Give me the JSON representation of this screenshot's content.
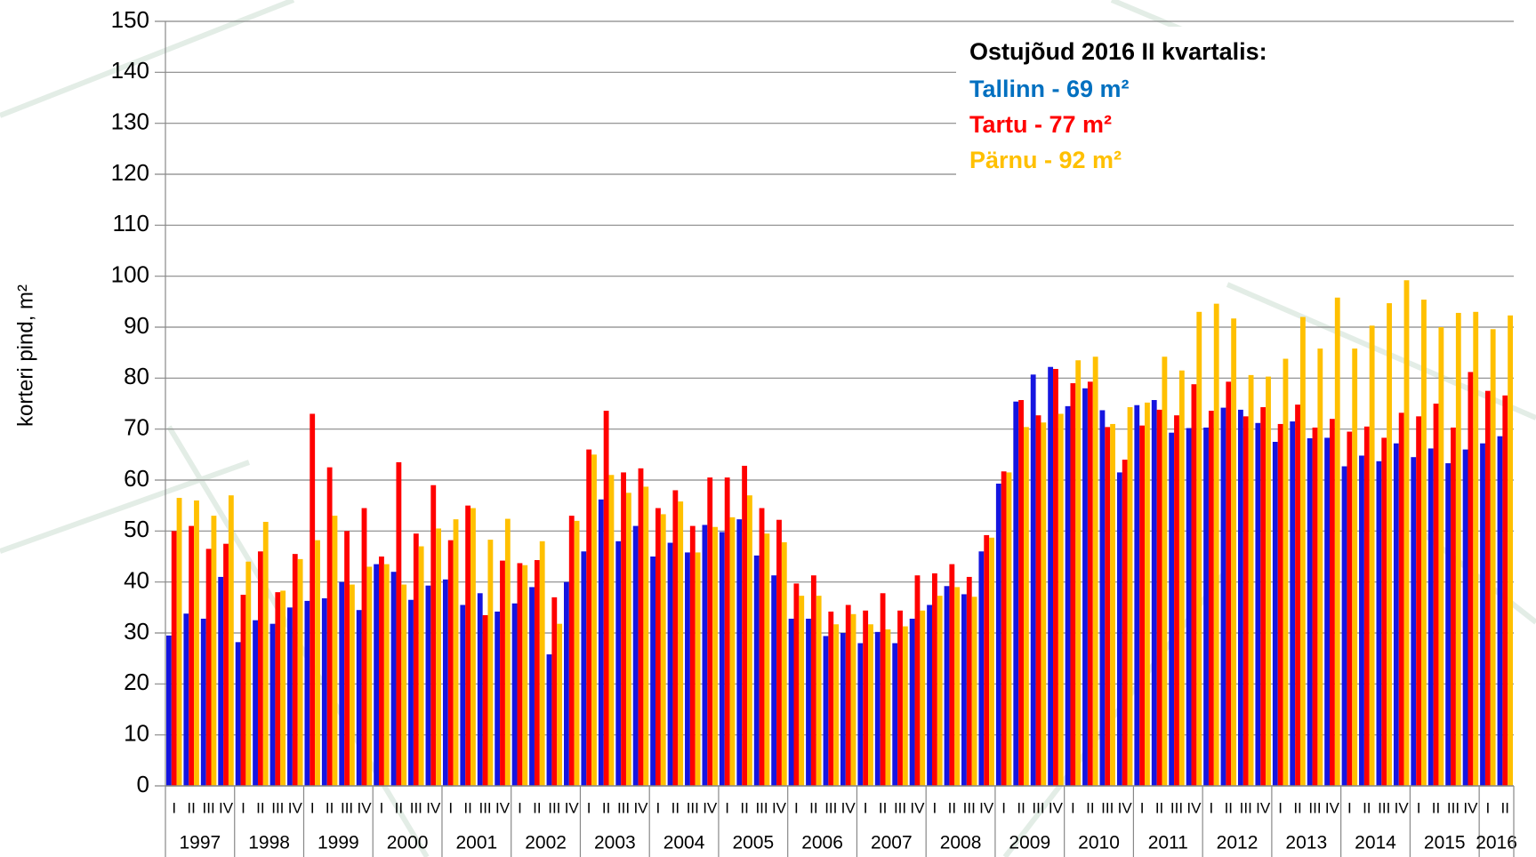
{
  "chart_data": {
    "type": "bar",
    "y_label": "korteri pind, m²",
    "legend_title": "Ostujõud 2016 II kvartalis:",
    "categories": [
      "I",
      "II",
      "III",
      "IV",
      "I",
      "II",
      "III",
      "IV",
      "I",
      "II",
      "III",
      "IV",
      "I",
      "II",
      "III",
      "IV",
      "I",
      "II",
      "III",
      "IV",
      "I",
      "II",
      "III",
      "IV",
      "I",
      "II",
      "III",
      "IV",
      "I",
      "II",
      "III",
      "IV",
      "I",
      "II",
      "III",
      "IV",
      "I",
      "II",
      "III",
      "IV",
      "I",
      "II",
      "III",
      "IV",
      "I",
      "II",
      "III",
      "IV",
      "I",
      "II",
      "III",
      "IV",
      "I",
      "II",
      "III",
      "IV",
      "I",
      "II",
      "III",
      "IV",
      "I",
      "II",
      "III",
      "IV",
      "I",
      "II",
      "III",
      "IV",
      "I",
      "II",
      "III",
      "IV",
      "I",
      "II",
      "III",
      "IV",
      "I",
      "II"
    ],
    "years": [
      "1997",
      "1998",
      "1999",
      "2000",
      "2001",
      "2002",
      "2003",
      "2004",
      "2005",
      "2006",
      "2007",
      "2008",
      "2009",
      "2010",
      "2011",
      "2012",
      "2013",
      "2014",
      "2015",
      "2016"
    ],
    "series": [
      {
        "name": "Tallinn - 69 m²",
        "color": "#1515e0",
        "label_color": "#0070c0",
        "values": [
          29.5,
          33.8,
          32.8,
          41,
          28.2,
          32.5,
          31.8,
          35,
          36.3,
          36.8,
          40,
          34.5,
          43.5,
          42,
          36.5,
          39.3,
          40.5,
          35.5,
          37.8,
          34.2,
          35.8,
          39,
          25.8,
          40,
          46,
          56.2,
          48,
          51,
          45,
          47.7,
          45.8,
          51.2,
          49.8,
          52.3,
          45.2,
          41.3,
          32.8,
          32.8,
          29.4,
          30,
          28,
          30.2,
          28,
          32.8,
          35.5,
          39.2,
          37.6,
          46,
          59.3,
          75.4,
          80.7,
          82.2,
          74.5,
          78,
          73.7,
          61.5,
          74.7,
          75.7,
          69.3,
          70.2,
          70.3,
          74.2,
          73.8,
          71.2,
          67.5,
          71.5,
          68.2,
          68.3,
          62.7,
          64.8,
          63.7,
          67.2,
          64.5,
          66.2,
          63.3,
          66,
          67.2,
          68.6
        ]
      },
      {
        "name": "Tartu - 77 m²",
        "color": "#ff0000",
        "label_color": "#ff0000",
        "values": [
          50,
          51,
          46.5,
          47.5,
          37.5,
          46,
          38,
          45.5,
          73,
          62.5,
          50,
          54.5,
          45,
          63.5,
          49.5,
          59,
          48.2,
          55,
          33.5,
          44.2,
          43.7,
          44.3,
          37,
          53,
          66,
          73.6,
          61.5,
          62.3,
          54.5,
          58,
          51,
          60.5,
          60.5,
          62.8,
          54.5,
          52.2,
          39.7,
          41.3,
          34.2,
          35.5,
          34.4,
          37.8,
          34.4,
          41.3,
          41.7,
          43.5,
          41,
          49.2,
          61.7,
          75.7,
          72.7,
          81.8,
          79,
          79.3,
          70.4,
          64,
          70.7,
          73.8,
          72.7,
          78.8,
          73.6,
          79.3,
          72.5,
          74.3,
          71,
          74.8,
          70.3,
          72,
          69.5,
          70.5,
          68.3,
          73.2,
          72.5,
          75,
          70.3,
          81.2,
          77.5,
          76.6
        ]
      },
      {
        "name": "Pärnu - 92 m²",
        "color": "#ffc000",
        "label_color": "#ffc000",
        "values": [
          56.5,
          56,
          53,
          57,
          44,
          51.8,
          38.3,
          44.5,
          48.2,
          53,
          39.5,
          43,
          43.5,
          39.5,
          47,
          50.5,
          52.3,
          54.5,
          48.3,
          52.4,
          43.3,
          48,
          31.8,
          52,
          65,
          61,
          57.5,
          58.7,
          53.3,
          55.8,
          45.8,
          50.8,
          52.7,
          57,
          49.5,
          47.8,
          37.3,
          37.3,
          31.7,
          33.7,
          31.7,
          30.7,
          31.3,
          34.4,
          37.3,
          39,
          37.1,
          48.7,
          61.5,
          70.4,
          71.3,
          73,
          83.5,
          84.2,
          71,
          74.3,
          75.2,
          84.2,
          81.5,
          93,
          94.6,
          91.7,
          80.6,
          80.3,
          83.8,
          92,
          85.8,
          95.8,
          85.8,
          90.3,
          94.7,
          99.2,
          95.4,
          90,
          92.8,
          93,
          89.6,
          92.3
        ]
      }
    ],
    "ylim": [
      0,
      150
    ],
    "yticks": [
      0,
      10,
      20,
      30,
      40,
      50,
      60,
      70,
      80,
      90,
      100,
      110,
      120,
      130,
      140,
      150
    ],
    "grid": true
  }
}
